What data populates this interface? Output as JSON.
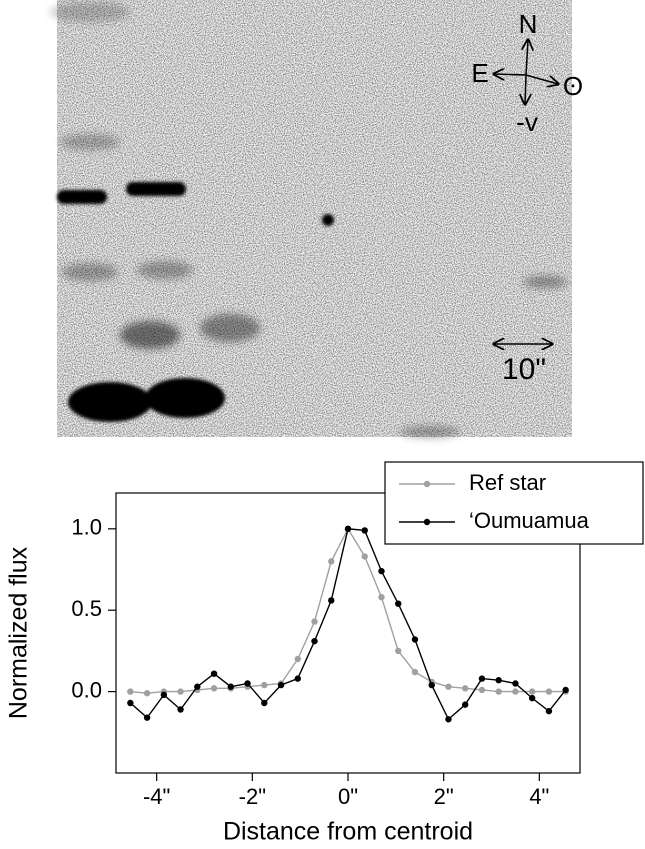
{
  "image": {
    "labels": {
      "north": "N",
      "east": "E",
      "sun": "ʘ",
      "velocity": "-v",
      "scale": "10\""
    }
  },
  "chart_data": {
    "type": "line",
    "xlabel": "Distance from centroid",
    "ylabel": "Normalized flux",
    "xlim": [
      -4.85,
      4.85
    ],
    "ylim": [
      -0.5,
      1.22
    ],
    "xticks": [
      {
        "value": -4,
        "label": "-4\""
      },
      {
        "value": -2,
        "label": "-2\""
      },
      {
        "value": 0,
        "label": "0\""
      },
      {
        "value": 2,
        "label": "2\""
      },
      {
        "value": 4,
        "label": "4\""
      }
    ],
    "yticks": [
      {
        "value": 0,
        "label": "0.0"
      },
      0.5,
      {
        "value": 1,
        "label": "1.0"
      }
    ],
    "x": [
      -4.55,
      -4.2,
      -3.85,
      -3.5,
      -3.15,
      -2.8,
      -2.45,
      -2.1,
      -1.75,
      -1.4,
      -1.05,
      -0.7,
      -0.35,
      0,
      0.35,
      0.7,
      1.05,
      1.4,
      1.75,
      2.1,
      2.45,
      2.8,
      3.15,
      3.5,
      3.85,
      4.2,
      4.55
    ],
    "series": [
      {
        "name": "Ref star",
        "color": "#a0a0a0",
        "values": [
          0,
          -0.01,
          0,
          0,
          0.01,
          0.02,
          0.02,
          0.03,
          0.04,
          0.05,
          0.2,
          0.43,
          0.8,
          1.0,
          0.83,
          0.58,
          0.25,
          0.12,
          0.06,
          0.03,
          0.02,
          0.01,
          0,
          0,
          0,
          0,
          0
        ]
      },
      {
        "name": "‘Oumuamua",
        "color": "#000000",
        "values": [
          -0.07,
          -0.16,
          -0.02,
          -0.11,
          0.03,
          0.11,
          0.03,
          0.05,
          -0.07,
          0.04,
          0.08,
          0.31,
          0.56,
          1.0,
          0.99,
          0.74,
          0.54,
          0.32,
          0.04,
          -0.17,
          -0.08,
          0.08,
          0.07,
          0.05,
          -0.04,
          -0.12,
          0.01
        ]
      }
    ],
    "legend": "upper right"
  }
}
